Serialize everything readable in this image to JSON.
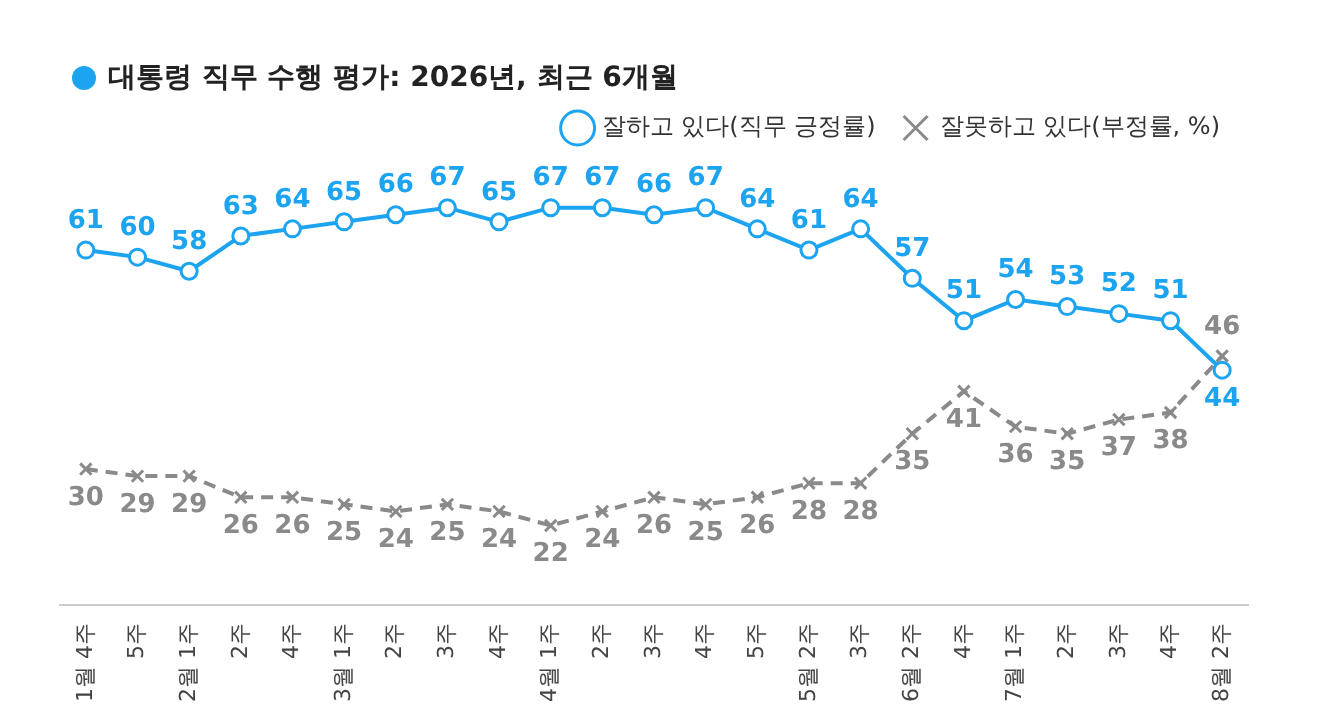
{
  "chart_data": {
    "type": "line",
    "title": "대통령 직무 수행 평가: 2026년, 최근 6개월",
    "categories": [
      "1월 4주",
      "5주",
      "2월 1주",
      "2주",
      "4주",
      "3월 1주",
      "2주",
      "3주",
      "4주",
      "4월 1주",
      "2주",
      "3주",
      "4주",
      "5주",
      "5월 2주",
      "3주",
      "6월 2주",
      "4주",
      "7월 1주",
      "2주",
      "3주",
      "4주",
      "8월 2주"
    ],
    "series": [
      {
        "name": "잘하고 있다(직무 긍정률)",
        "color": "#1ca4f0",
        "marker": "circle",
        "line_style": "solid",
        "values": [
          61,
          60,
          58,
          63,
          64,
          65,
          66,
          67,
          65,
          67,
          67,
          66,
          67,
          64,
          61,
          64,
          57,
          51,
          54,
          53,
          52,
          51,
          44
        ]
      },
      {
        "name": "잘못하고 있다(부정률, %)",
        "color": "#8a8a8a",
        "marker": "cross",
        "line_style": "dashed",
        "values": [
          30,
          29,
          29,
          26,
          26,
          25,
          24,
          25,
          24,
          22,
          24,
          26,
          25,
          26,
          28,
          28,
          35,
          41,
          36,
          35,
          37,
          38,
          46
        ]
      }
    ],
    "data_labels": true,
    "legend": "top right",
    "grid": false
  }
}
